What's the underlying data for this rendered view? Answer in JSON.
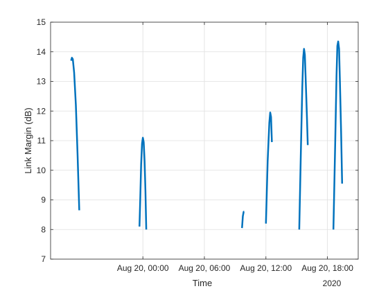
{
  "chart_data": {
    "type": "line",
    "title": "",
    "xlabel": "Time",
    "ylabel": "Link Margin (dB)",
    "ylim": [
      7,
      15
    ],
    "xlim": [
      "2020-08-19 15:00",
      "2020-08-20 21:00"
    ],
    "x_ticks": [
      "2020-08-20 00:00",
      "2020-08-20 06:00",
      "2020-08-20 12:00",
      "2020-08-20 18:00"
    ],
    "x_tick_labels": [
      "Aug 20, 00:00",
      "Aug 20, 06:00",
      "Aug 20, 12:00",
      "Aug 20, 18:00"
    ],
    "x_secondary_label": "2020",
    "y_ticks": [
      7,
      8,
      9,
      10,
      11,
      12,
      13,
      14,
      15
    ],
    "grid": true,
    "line_color": "#0072bd",
    "series": [
      {
        "segments": [
          [
            [
              "2020-08-19 17:00",
              13.7
            ],
            [
              "2020-08-19 17:05",
              13.8
            ],
            [
              "2020-08-19 17:10",
              13.75
            ],
            [
              "2020-08-19 17:18",
              13.3
            ],
            [
              "2020-08-19 17:28",
              12.2
            ],
            [
              "2020-08-19 17:38",
              10.5
            ],
            [
              "2020-08-19 17:48",
              8.65
            ]
          ],
          [
            [
              "2020-08-19 23:40",
              8.1
            ],
            [
              "2020-08-19 23:45",
              9.1
            ],
            [
              "2020-08-19 23:50",
              10.2
            ],
            [
              "2020-08-19 23:55",
              10.9
            ],
            [
              "2020-08-20 00:00",
              11.1
            ],
            [
              "2020-08-20 00:05",
              10.95
            ],
            [
              "2020-08-20 00:10",
              10.3
            ],
            [
              "2020-08-20 00:15",
              9.3
            ],
            [
              "2020-08-20 00:20",
              8.0
            ]
          ],
          [
            [
              "2020-08-20 09:40",
              8.05
            ],
            [
              "2020-08-20 09:45",
              8.45
            ],
            [
              "2020-08-20 09:50",
              8.6
            ],
            [
              "2020-08-20 09:53",
              8.6
            ]
          ],
          [
            [
              "2020-08-20 12:00",
              8.2
            ],
            [
              "2020-08-20 12:10",
              10.3
            ],
            [
              "2020-08-20 12:20",
              11.6
            ],
            [
              "2020-08-20 12:25",
              11.95
            ],
            [
              "2020-08-20 12:30",
              11.8
            ],
            [
              "2020-08-20 12:35",
              10.95
            ]
          ],
          [
            [
              "2020-08-20 15:15",
              8.0
            ],
            [
              "2020-08-20 15:25",
              10.8
            ],
            [
              "2020-08-20 15:33",
              12.8
            ],
            [
              "2020-08-20 15:38",
              13.8
            ],
            [
              "2020-08-20 15:43",
              14.1
            ],
            [
              "2020-08-20 15:48",
              13.9
            ],
            [
              "2020-08-20 15:53",
              13.0
            ],
            [
              "2020-08-20 16:00",
              11.8
            ],
            [
              "2020-08-20 16:05",
              10.85
            ]
          ],
          [
            [
              "2020-08-20 18:35",
              8.0
            ],
            [
              "2020-08-20 18:45",
              10.8
            ],
            [
              "2020-08-20 18:53",
              13.2
            ],
            [
              "2020-08-20 18:58",
              14.2
            ],
            [
              "2020-08-20 19:03",
              14.35
            ],
            [
              "2020-08-20 19:08",
              14.1
            ],
            [
              "2020-08-20 19:13",
              13.0
            ],
            [
              "2020-08-20 19:20",
              11.3
            ],
            [
              "2020-08-20 19:26",
              9.55
            ]
          ]
        ]
      }
    ]
  }
}
